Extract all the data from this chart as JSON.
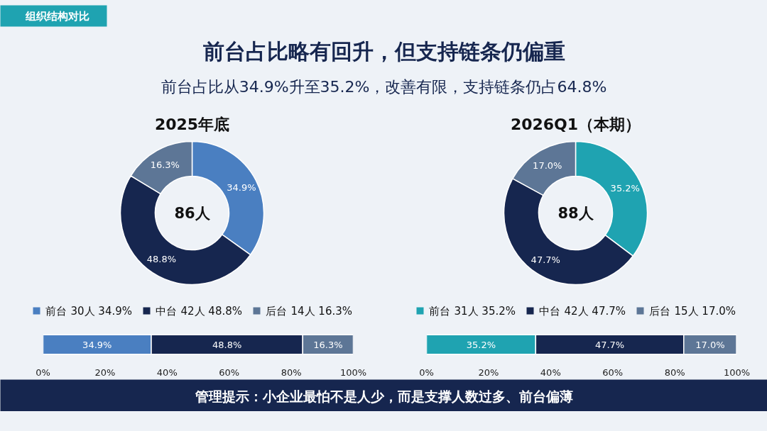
{
  "chart_data": [
    {
      "type": "other",
      "title": "前台占比略有回升，但支持链条仍偏重",
      "subtitle": "前台占比从34.9%升至35.2%，改善有限，支持链条仍占64.8%",
      "annotations": [
        "组织结构对比",
        "管理提示：小企业最怕不是人少，而是支撑人数过多、前台偏薄"
      ]
    },
    {
      "type": "donut",
      "legend": "bottom",
      "title": "2025年底",
      "categories": [
        "前台",
        "中台",
        "后台"
      ],
      "values": [
        34.9,
        48.8,
        16.3
      ],
      "colors": [
        "#4a7fc1",
        "#16264f",
        "#5d7696"
      ],
      "value_labels": [
        "34.9%",
        "48.8%",
        "16.3%"
      ],
      "annotations": [
        "86人",
        "30人 34.9%",
        "42人 48.8%",
        "14人 16.3%"
      ]
    },
    {
      "type": "donut",
      "legend": "bottom",
      "title": "2026Q1（本期）",
      "categories": [
        "前台",
        "中台",
        "后台"
      ],
      "values": [
        35.2,
        47.7,
        17.0
      ],
      "colors": [
        "#1fa3b1",
        "#16264f",
        "#5d7696"
      ],
      "value_labels": [
        "35.2%",
        "47.7%",
        "17.0%"
      ],
      "annotations": [
        "88人",
        "31人 35.2%",
        "42人 47.7%",
        "15人 17.0%"
      ]
    },
    {
      "type": "bar",
      "orientation": "horizontal",
      "stacked": true,
      "categories": [
        null
      ],
      "xlim": [
        0,
        100
      ],
      "xticks": [
        {
          "value": 0,
          "label": "0%"
        },
        {
          "value": 20,
          "label": "20%"
        },
        {
          "value": 40,
          "label": "40%"
        },
        {
          "value": 60,
          "label": "60%"
        },
        {
          "value": 80,
          "label": "80%"
        },
        {
          "value": 100,
          "label": "100%"
        }
      ],
      "grid": false,
      "series": [
        {
          "color": "#4a7fc1",
          "values": [
            34.9
          ],
          "value_labels": [
            "34.9%"
          ]
        },
        {
          "color": "#16264f",
          "values": [
            48.8
          ],
          "value_labels": [
            "48.8%"
          ]
        },
        {
          "color": "#5d7696",
          "values": [
            16.3
          ],
          "value_labels": [
            "16.3%"
          ]
        }
      ]
    },
    {
      "type": "bar",
      "orientation": "horizontal",
      "stacked": true,
      "categories": [
        null
      ],
      "xlim": [
        0,
        100
      ],
      "xticks": [
        {
          "value": 0,
          "label": "0%"
        },
        {
          "value": 20,
          "label": "20%"
        },
        {
          "value": 40,
          "label": "40%"
        },
        {
          "value": 60,
          "label": "60%"
        },
        {
          "value": 80,
          "label": "80%"
        },
        {
          "value": 100,
          "label": "100%"
        }
      ],
      "grid": false,
      "series": [
        {
          "color": "#1fa3b1",
          "values": [
            35.2
          ],
          "value_labels": [
            "35.2%"
          ]
        },
        {
          "color": "#16264f",
          "values": [
            47.7
          ],
          "value_labels": [
            "47.7%"
          ]
        },
        {
          "color": "#5d7696",
          "values": [
            17.0
          ],
          "value_labels": [
            "17.0%"
          ]
        }
      ]
    }
  ]
}
